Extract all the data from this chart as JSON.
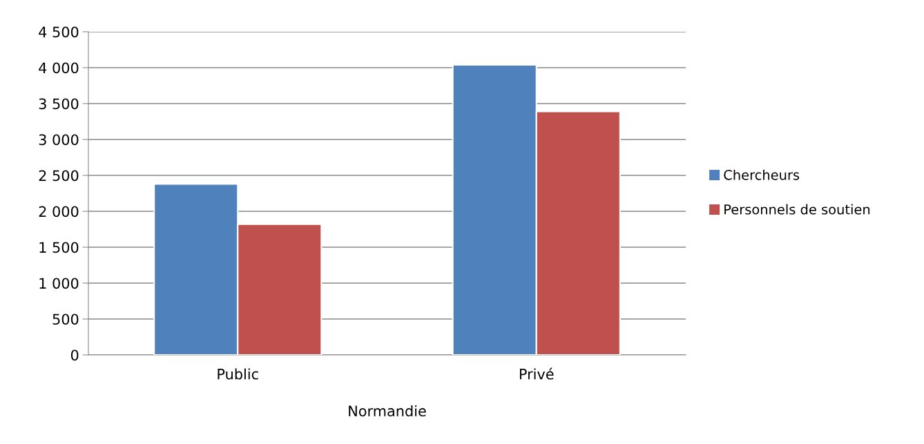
{
  "chart_data": {
    "type": "bar",
    "categories": [
      "Public",
      "Privé"
    ],
    "xlabel": "Normandie",
    "series": [
      {
        "name": "Chercheurs",
        "color": "#4f81bd",
        "values": [
          2380,
          4040
        ]
      },
      {
        "name": "Personnels de soutien",
        "color": "#c0504d",
        "values": [
          1820,
          3390
        ]
      }
    ],
    "ylim": [
      0,
      4500
    ],
    "yticks": [
      {
        "value": 0,
        "label": "0"
      },
      {
        "value": 500,
        "label": "500"
      },
      {
        "value": 1000,
        "label": "1 000"
      },
      {
        "value": 1500,
        "label": "1 500"
      },
      {
        "value": 2000,
        "label": "2 000"
      },
      {
        "value": 2500,
        "label": "2 500"
      },
      {
        "value": 3000,
        "label": "3 000"
      },
      {
        "value": 3500,
        "label": "3 500"
      },
      {
        "value": 4000,
        "label": "4 000"
      },
      {
        "value": 4500,
        "label": "4 500"
      }
    ],
    "grid": "y",
    "legend": "right"
  }
}
